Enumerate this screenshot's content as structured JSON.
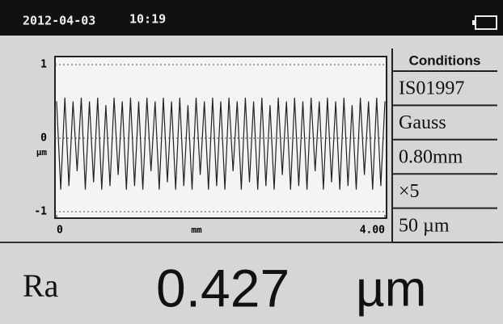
{
  "header": {
    "date": "2012-04-03",
    "time": "10:19"
  },
  "chart_data": {
    "type": "line",
    "xlabel": "mm",
    "ylabel": "µm",
    "xlim": [
      0,
      4
    ],
    "xticks": [
      0,
      {
        "value": 4,
        "label": "4.00"
      }
    ],
    "ylim": [
      -1,
      1
    ],
    "yticks": [
      -1,
      0,
      1
    ],
    "grid": true,
    "color": "#222222",
    "x": [
      0,
      0.05,
      0.1,
      0.15,
      0.2,
      0.25,
      0.3,
      0.35,
      0.4,
      0.45,
      0.5,
      0.55,
      0.6,
      0.65,
      0.7,
      0.75,
      0.8,
      0.85,
      0.9,
      0.95,
      1,
      1.05,
      1.1,
      1.15,
      1.2,
      1.25,
      1.3,
      1.35,
      1.4,
      1.45,
      1.5,
      1.55,
      1.6,
      1.65,
      1.7,
      1.75,
      1.8,
      1.85,
      1.9,
      1.95,
      2,
      2.05,
      2.1,
      2.15,
      2.2,
      2.25,
      2.3,
      2.35,
      2.4,
      2.45,
      2.5,
      2.55,
      2.6,
      2.65,
      2.7,
      2.75,
      2.8,
      2.85,
      2.9,
      2.95,
      3,
      3.05,
      3.1,
      3.15,
      3.2,
      3.25,
      3.3,
      3.35,
      3.4,
      3.45,
      3.5,
      3.55,
      3.6,
      3.65,
      3.7,
      3.75,
      3.8,
      3.85,
      3.9,
      3.95,
      4
    ],
    "values": [
      0.5,
      -0.7,
      0.55,
      -0.65,
      0.5,
      -0.45,
      0.55,
      -0.7,
      0.5,
      -0.6,
      0.55,
      -0.7,
      0.45,
      -0.65,
      0.55,
      -0.5,
      0.5,
      -0.7,
      0.55,
      -0.65,
      0.5,
      -0.7,
      0.55,
      -0.45,
      0.5,
      -0.7,
      0.55,
      -0.6,
      0.5,
      -0.7,
      0.55,
      -0.65,
      0.45,
      -0.7,
      0.55,
      -0.5,
      0.5,
      -0.7,
      0.55,
      -0.65,
      0.5,
      -0.7,
      0.55,
      -0.45,
      0.5,
      -0.7,
      0.55,
      -0.6,
      0.5,
      -0.7,
      0.55,
      -0.65,
      0.45,
      -0.7,
      0.55,
      -0.5,
      0.5,
      -0.7,
      0.55,
      -0.65,
      0.5,
      -0.7,
      0.55,
      -0.45,
      0.5,
      -0.7,
      0.55,
      -0.6,
      0.5,
      -0.7,
      0.55,
      -0.65,
      0.45,
      -0.7,
      0.55,
      -0.5,
      0.5,
      -0.7,
      0.55,
      -0.65,
      0.5
    ]
  },
  "conditions": {
    "title": "Conditions",
    "rows": [
      "IS01997",
      "Gauss",
      "0.80mm",
      "×5",
      "50 µm"
    ]
  },
  "result": {
    "label": "Ra",
    "value": 0.427,
    "unit": "µm"
  }
}
